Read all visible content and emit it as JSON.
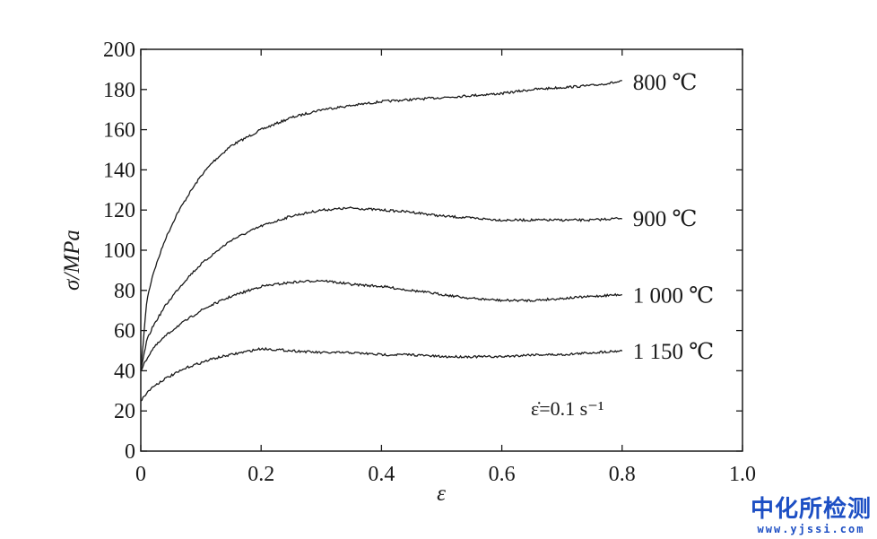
{
  "chart_data": {
    "type": "line",
    "xlabel": "ε",
    "ylabel": "σ/MPa",
    "xlim": [
      0,
      1.0
    ],
    "ylim": [
      0,
      200
    ],
    "xticks": [
      "0",
      "0.2",
      "0.4",
      "0.6",
      "0.8",
      "1.0"
    ],
    "yticks": [
      "0",
      "20",
      "40",
      "60",
      "80",
      "100",
      "120",
      "140",
      "160",
      "180",
      "200"
    ],
    "annotation": "ε̇=0.1 s⁻¹",
    "grid": false,
    "series": [
      {
        "name": "800 ℃",
        "x": [
          0,
          0.01,
          0.02,
          0.04,
          0.06,
          0.08,
          0.1,
          0.12,
          0.15,
          0.2,
          0.25,
          0.3,
          0.35,
          0.4,
          0.45,
          0.5,
          0.55,
          0.6,
          0.65,
          0.7,
          0.75,
          0.8
        ],
        "y": [
          40,
          75,
          88,
          105,
          118,
          128,
          137,
          144,
          152,
          160,
          166,
          170,
          172,
          174,
          175,
          176,
          177,
          178,
          180,
          181,
          182,
          184
        ]
      },
      {
        "name": "900 ℃",
        "x": [
          0,
          0.01,
          0.02,
          0.04,
          0.06,
          0.08,
          0.1,
          0.12,
          0.15,
          0.2,
          0.25,
          0.3,
          0.35,
          0.4,
          0.45,
          0.5,
          0.55,
          0.6,
          0.65,
          0.7,
          0.75,
          0.8
        ],
        "y": [
          40,
          55,
          62,
          72,
          80,
          87,
          93,
          98,
          105,
          112,
          117,
          120,
          121,
          120,
          119,
          117,
          116,
          115,
          115,
          115,
          115,
          116
        ]
      },
      {
        "name": "1 000 ℃",
        "x": [
          0,
          0.01,
          0.02,
          0.04,
          0.06,
          0.08,
          0.1,
          0.12,
          0.15,
          0.2,
          0.25,
          0.3,
          0.35,
          0.4,
          0.45,
          0.5,
          0.55,
          0.6,
          0.65,
          0.7,
          0.75,
          0.8
        ],
        "y": [
          40,
          46,
          51,
          57,
          62,
          66,
          70,
          73,
          77,
          82,
          84,
          85,
          83,
          82,
          80,
          78,
          76,
          75,
          75,
          76,
          77,
          78
        ]
      },
      {
        "name": "1 150 ℃",
        "x": [
          0,
          0.01,
          0.02,
          0.04,
          0.06,
          0.08,
          0.1,
          0.12,
          0.15,
          0.2,
          0.25,
          0.3,
          0.35,
          0.4,
          0.45,
          0.5,
          0.55,
          0.6,
          0.65,
          0.7,
          0.75,
          0.8
        ],
        "y": [
          25,
          29,
          32,
          36,
          39,
          42,
          44,
          46,
          48,
          51,
          50,
          49,
          49,
          48,
          48,
          47,
          47,
          47,
          48,
          48,
          49,
          50
        ]
      }
    ]
  },
  "watermark": {
    "text": "中化所检测",
    "url": "www.yjssi.com",
    "color": "#1d4fc4"
  }
}
